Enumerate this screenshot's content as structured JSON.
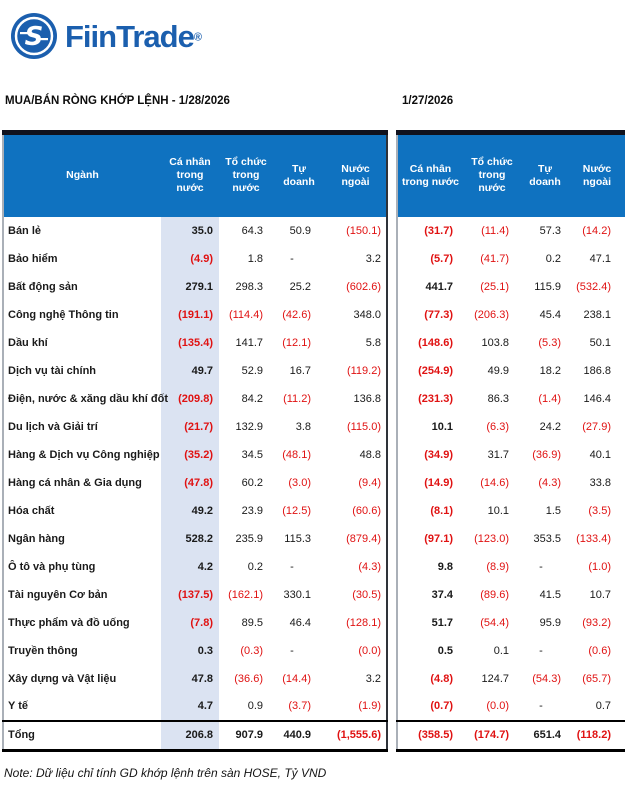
{
  "brand": {
    "name": "FiinTrade",
    "registered": "®"
  },
  "titles": {
    "left": "MUA/BÁN RÒNG KHỚP LỆNH - 1/28/2026",
    "right": "1/27/2026"
  },
  "table1": {
    "columns": [
      "Ngành",
      "Cá nhân trong nước",
      "Tổ chức trong nước",
      "Tự doanh",
      "Nước ngoài"
    ]
  },
  "table2": {
    "columns": [
      "Cá nhân trong nước",
      "Tổ chức trong nước",
      "Tự doanh",
      "Nước ngoài"
    ]
  },
  "rows": [
    {
      "sector": "Bán lẻ",
      "t1": [
        "35.0",
        "64.3",
        "50.9",
        "(150.1)"
      ],
      "t2": [
        "(31.7)",
        "(11.4)",
        "57.3",
        "(14.2)"
      ]
    },
    {
      "sector": "Bảo hiểm",
      "t1": [
        "(4.9)",
        "1.8",
        "-",
        "3.2"
      ],
      "t2": [
        "(5.7)",
        "(41.7)",
        "0.2",
        "47.1"
      ]
    },
    {
      "sector": "Bất động sản",
      "t1": [
        "279.1",
        "298.3",
        "25.2",
        "(602.6)"
      ],
      "t2": [
        "441.7",
        "(25.1)",
        "115.9",
        "(532.4)"
      ]
    },
    {
      "sector": "Công nghệ Thông tin",
      "t1": [
        "(191.1)",
        "(114.4)",
        "(42.6)",
        "348.0"
      ],
      "t2": [
        "(77.3)",
        "(206.3)",
        "45.4",
        "238.1"
      ]
    },
    {
      "sector": "Dầu khí",
      "t1": [
        "(135.4)",
        "141.7",
        "(12.1)",
        "5.8"
      ],
      "t2": [
        "(148.6)",
        "103.8",
        "(5.3)",
        "50.1"
      ]
    },
    {
      "sector": "Dịch vụ tài chính",
      "t1": [
        "49.7",
        "52.9",
        "16.7",
        "(119.2)"
      ],
      "t2": [
        "(254.9)",
        "49.9",
        "18.2",
        "186.8"
      ]
    },
    {
      "sector": "Điện, nước & xăng dầu khí đốt",
      "t1": [
        "(209.8)",
        "84.2",
        "(11.2)",
        "136.8"
      ],
      "t2": [
        "(231.3)",
        "86.3",
        "(1.4)",
        "146.4"
      ]
    },
    {
      "sector": "Du lịch và Giải trí",
      "t1": [
        "(21.7)",
        "132.9",
        "3.8",
        "(115.0)"
      ],
      "t2": [
        "10.1",
        "(6.3)",
        "24.2",
        "(27.9)"
      ]
    },
    {
      "sector": "Hàng & Dịch vụ Công nghiệp",
      "t1": [
        "(35.2)",
        "34.5",
        "(48.1)",
        "48.8"
      ],
      "t2": [
        "(34.9)",
        "31.7",
        "(36.9)",
        "40.1"
      ]
    },
    {
      "sector": "Hàng cá nhân & Gia dụng",
      "t1": [
        "(47.8)",
        "60.2",
        "(3.0)",
        "(9.4)"
      ],
      "t2": [
        "(14.9)",
        "(14.6)",
        "(4.3)",
        "33.8"
      ]
    },
    {
      "sector": "Hóa chất",
      "t1": [
        "49.2",
        "23.9",
        "(12.5)",
        "(60.6)"
      ],
      "t2": [
        "(8.1)",
        "10.1",
        "1.5",
        "(3.5)"
      ]
    },
    {
      "sector": "Ngân hàng",
      "t1": [
        "528.2",
        "235.9",
        "115.3",
        "(879.4)"
      ],
      "t2": [
        "(97.1)",
        "(123.0)",
        "353.5",
        "(133.4)"
      ]
    },
    {
      "sector": "Ô tô và phụ tùng",
      "t1": [
        "4.2",
        "0.2",
        "-",
        "(4.3)"
      ],
      "t2": [
        "9.8",
        "(8.9)",
        "-",
        "(1.0)"
      ]
    },
    {
      "sector": "Tài nguyên Cơ bản",
      "t1": [
        "(137.5)",
        "(162.1)",
        "330.1",
        "(30.5)"
      ],
      "t2": [
        "37.4",
        "(89.6)",
        "41.5",
        "10.7"
      ]
    },
    {
      "sector": "Thực phẩm và đồ uống",
      "t1": [
        "(7.8)",
        "89.5",
        "46.4",
        "(128.1)"
      ],
      "t2": [
        "51.7",
        "(54.4)",
        "95.9",
        "(93.2)"
      ]
    },
    {
      "sector": "Truyền thông",
      "t1": [
        "0.3",
        "(0.3)",
        "-",
        "(0.0)"
      ],
      "t2": [
        "0.5",
        "0.1",
        "-",
        "(0.6)"
      ]
    },
    {
      "sector": "Xây dựng và Vật liệu",
      "t1": [
        "47.8",
        "(36.6)",
        "(14.4)",
        "3.2"
      ],
      "t2": [
        "(4.8)",
        "124.7",
        "(54.3)",
        "(65.7)"
      ]
    },
    {
      "sector": "Y tế",
      "t1": [
        "4.7",
        "0.9",
        "(3.7)",
        "(1.9)"
      ],
      "t2": [
        "(0.7)",
        "(0.0)",
        "-",
        "0.7"
      ]
    }
  ],
  "total": {
    "label": "Tổng",
    "t1": [
      "206.8",
      "907.9",
      "440.9",
      "(1,555.6)"
    ],
    "t2": [
      "(358.5)",
      "(174.7)",
      "651.4",
      "(118.2)"
    ]
  },
  "note": "Note: Dữ liệu chỉ tính GD khớp lệnh trên sàn HOSE, Tỷ VND",
  "colors": {
    "header_bg": "#0f72c0",
    "shaded_column": "#dbe3f2",
    "negative_red": "#e01212",
    "brand_blue": "#1b5fae"
  }
}
